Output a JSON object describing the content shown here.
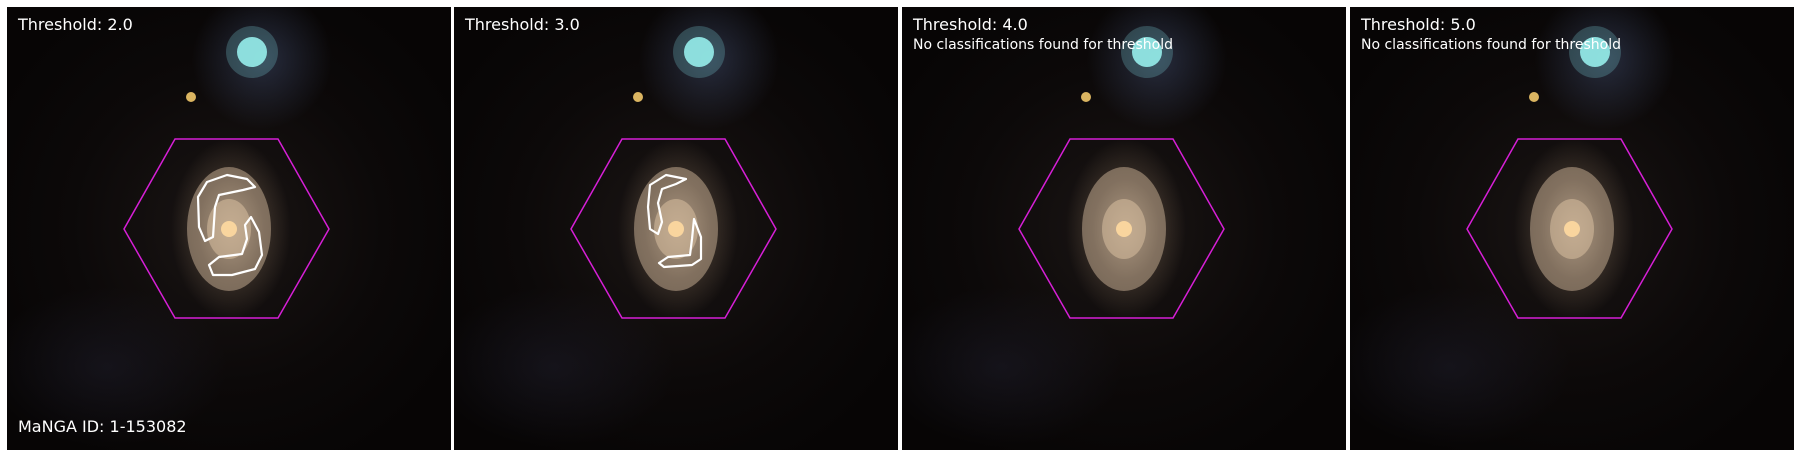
{
  "panels": [
    {
      "title": "Threshold: 2.0",
      "message": "",
      "footer": "MaNGA ID: 1-153082"
    },
    {
      "title": "Threshold: 3.0",
      "message": "",
      "footer": ""
    },
    {
      "title": "Threshold: 4.0",
      "message": "No classifications found for threshold",
      "footer": ""
    },
    {
      "title": "Threshold: 5.0",
      "message": "No classifications found for threshold",
      "footer": ""
    }
  ],
  "colors": {
    "hexagon": "#d61fd6",
    "contour": "#ffffff",
    "bright_star": "#9ef6f0",
    "small_star": "#f2c86a",
    "galaxy_core": "#ffd9a0"
  }
}
